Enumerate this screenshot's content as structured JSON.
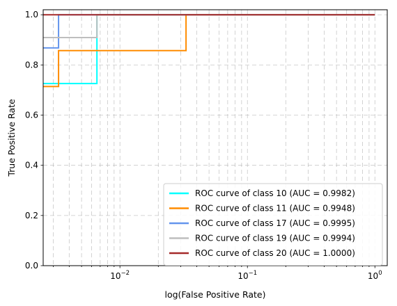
{
  "chart_data": {
    "type": "line",
    "xlabel": "log(False Positive Rate)",
    "ylabel": "True Positive Rate",
    "xscale": "log",
    "xlim": [
      0.0025,
      1.25
    ],
    "ylim": [
      0.0,
      1.02
    ],
    "x_ticks": [
      {
        "value": 0.01,
        "label_base": "10",
        "label_exp": "−2"
      },
      {
        "value": 0.1,
        "label_base": "10",
        "label_exp": "−1"
      },
      {
        "value": 1,
        "label_base": "10",
        "label_exp": "0"
      }
    ],
    "y_ticks": [
      {
        "value": 0.0,
        "label": "0.0"
      },
      {
        "value": 0.2,
        "label": "0.2"
      },
      {
        "value": 0.4,
        "label": "0.4"
      },
      {
        "value": 0.6,
        "label": "0.6"
      },
      {
        "value": 0.8,
        "label": "0.8"
      },
      {
        "value": 1.0,
        "label": "1.0"
      }
    ],
    "grid": true,
    "legend_position": "lower-right",
    "series": [
      {
        "name": "ROC curve of class 10 (AUC = 0.9982)",
        "color": "#00ffff",
        "points": [
          [
            0.0025,
            0.726
          ],
          [
            0.0066,
            0.726
          ],
          [
            0.0066,
            1.0
          ],
          [
            1.0,
            1.0
          ]
        ]
      },
      {
        "name": "ROC curve of class 11 (AUC = 0.9948)",
        "color": "#ff8c00",
        "points": [
          [
            0.0025,
            0.714
          ],
          [
            0.0033,
            0.714
          ],
          [
            0.0033,
            0.857
          ],
          [
            0.033,
            0.857
          ],
          [
            0.033,
            1.0
          ],
          [
            1.0,
            1.0
          ]
        ]
      },
      {
        "name": "ROC curve of class 17 (AUC = 0.9995)",
        "color": "#6495ed",
        "points": [
          [
            0.0025,
            0.868
          ],
          [
            0.0033,
            0.868
          ],
          [
            0.0033,
            1.0
          ],
          [
            1.0,
            1.0
          ]
        ]
      },
      {
        "name": "ROC curve of class 19 (AUC = 0.9994)",
        "color": "#bebebe",
        "points": [
          [
            0.0025,
            0.909
          ],
          [
            0.0066,
            0.909
          ],
          [
            0.0066,
            1.0
          ],
          [
            1.0,
            1.0
          ]
        ]
      },
      {
        "name": "ROC curve of class 20 (AUC = 1.0000)",
        "color": "#a52a2a",
        "points": [
          [
            0.0025,
            1.0
          ],
          [
            1.0,
            1.0
          ]
        ]
      }
    ]
  }
}
